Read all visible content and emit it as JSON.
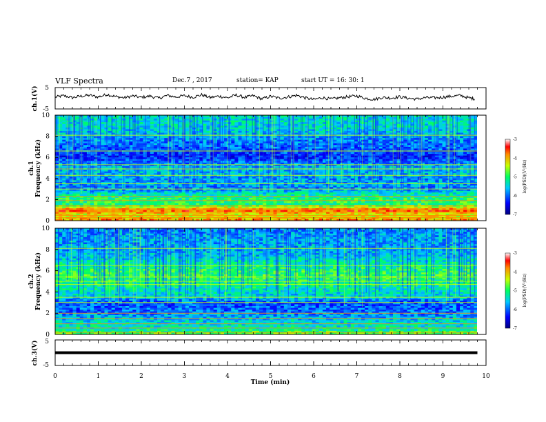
{
  "header": {
    "title": "VLF Spectra",
    "date": "Dec.7 , 2017",
    "station": "station= KAP",
    "start": "start UT =  16: 30: 1"
  },
  "chart_data": [
    {
      "type": "line",
      "ylabel": "ch.1(V)",
      "ylim": [
        -5,
        5
      ],
      "yticks": [
        "5",
        "-5"
      ],
      "xlim": [
        0,
        10
      ],
      "waveform_approx": [
        [
          0.0,
          0.5
        ],
        [
          0.2,
          1.2
        ],
        [
          0.4,
          0.3
        ],
        [
          0.6,
          1.0
        ],
        [
          0.8,
          1.4
        ],
        [
          1.0,
          0.6
        ],
        [
          1.2,
          1.8
        ],
        [
          1.4,
          0.8
        ],
        [
          1.6,
          0.2
        ],
        [
          1.8,
          1.1
        ],
        [
          2.0,
          0.4
        ],
        [
          2.2,
          1.0
        ],
        [
          2.4,
          0.0
        ],
        [
          2.6,
          1.3
        ],
        [
          2.8,
          0.6
        ],
        [
          3.0,
          1.2
        ],
        [
          3.2,
          0.5
        ],
        [
          3.4,
          1.6
        ],
        [
          3.6,
          0.3
        ],
        [
          3.8,
          1.0
        ],
        [
          4.0,
          0.2
        ],
        [
          4.2,
          1.5
        ],
        [
          4.4,
          0.4
        ],
        [
          4.6,
          1.2
        ],
        [
          4.8,
          -0.3
        ],
        [
          5.0,
          0.9
        ],
        [
          5.2,
          0.0
        ],
        [
          5.4,
          0.6
        ],
        [
          5.6,
          1.4
        ],
        [
          5.8,
          0.2
        ],
        [
          6.0,
          -0.6
        ],
        [
          6.2,
          0.3
        ],
        [
          6.4,
          -0.4
        ],
        [
          6.6,
          0.2
        ],
        [
          6.8,
          0.7
        ],
        [
          7.0,
          1.1
        ],
        [
          7.2,
          0.0
        ],
        [
          7.4,
          -0.5
        ],
        [
          7.6,
          0.4
        ],
        [
          7.8,
          0.1
        ],
        [
          8.0,
          0.7
        ],
        [
          8.2,
          0.0
        ],
        [
          8.4,
          -0.4
        ],
        [
          8.6,
          0.3
        ],
        [
          8.8,
          0.2
        ],
        [
          9.0,
          0.5
        ],
        [
          9.2,
          0.9
        ],
        [
          9.4,
          1.3
        ],
        [
          9.6,
          0.2
        ],
        [
          9.75,
          -0.3
        ]
      ]
    },
    {
      "type": "heatmap",
      "ylabel": "ch.1\nFrequency (kHz)",
      "ylabel_line1": "ch.1",
      "ylabel_line2": "Frequency (kHz)",
      "ylim": [
        0,
        10
      ],
      "yticks": [
        "0",
        "2",
        "4",
        "6",
        "8",
        "10"
      ],
      "xlim": [
        0,
        10
      ],
      "colorbar": {
        "label": "log(PSD)(V²/Hz)",
        "range": [
          -7,
          -3
        ],
        "ticks": [
          "-3",
          "-4",
          "-5",
          "-6",
          "-7"
        ]
      },
      "tone_lines_khz": [
        0.3,
        0.5,
        0.8,
        1.1,
        1.4,
        1.9,
        2.3,
        3.0,
        3.5,
        4.3,
        4.9,
        5.3,
        6.6,
        8.1
      ],
      "profile_db": [
        [
          0.0,
          -3.8
        ],
        [
          0.5,
          -4.4
        ],
        [
          1.0,
          -3.6
        ],
        [
          1.5,
          -5.0
        ],
        [
          2.0,
          -5.0
        ],
        [
          2.5,
          -5.3
        ],
        [
          3.0,
          -5.9
        ],
        [
          3.5,
          -5.7
        ],
        [
          4.0,
          -5.8
        ],
        [
          4.5,
          -5.6
        ],
        [
          5.0,
          -5.6
        ],
        [
          5.5,
          -5.9
        ],
        [
          6.0,
          -6.3
        ],
        [
          6.5,
          -6.1
        ],
        [
          7.0,
          -6.0
        ],
        [
          7.5,
          -5.9
        ],
        [
          8.0,
          -5.7
        ],
        [
          8.5,
          -5.5
        ],
        [
          9.0,
          -5.4
        ],
        [
          9.5,
          -5.4
        ],
        [
          10.0,
          -5.4
        ]
      ]
    },
    {
      "type": "heatmap",
      "ylabel": "ch.2\nFrequency (kHz)",
      "ylabel_line1": "ch.2",
      "ylabel_line2": "Frequency (kHz)",
      "ylim": [
        0,
        10
      ],
      "yticks": [
        "0",
        "2",
        "4",
        "6",
        "8",
        "10"
      ],
      "xlim": [
        0,
        10
      ],
      "colorbar": {
        "label": "log(PSD)(V²/Hz)",
        "range": [
          -7,
          -3
        ],
        "ticks": [
          "-3",
          "-4",
          "-5",
          "-6",
          "-7"
        ]
      },
      "tone_lines_khz": [
        0.2,
        0.6,
        1.0,
        1.5,
        2.0,
        3.0,
        3.5,
        4.7,
        5.0,
        5.4,
        6.5,
        8.1
      ],
      "profile_db": [
        [
          0.0,
          -4.6
        ],
        [
          0.5,
          -5.3
        ],
        [
          1.0,
          -5.4
        ],
        [
          1.5,
          -5.6
        ],
        [
          2.0,
          -5.9
        ],
        [
          2.5,
          -6.0
        ],
        [
          3.0,
          -6.1
        ],
        [
          3.5,
          -5.5
        ],
        [
          4.0,
          -5.4
        ],
        [
          4.5,
          -5.2
        ],
        [
          5.0,
          -5.1
        ],
        [
          5.5,
          -4.9
        ],
        [
          6.0,
          -5.0
        ],
        [
          6.5,
          -5.2
        ],
        [
          7.0,
          -5.4
        ],
        [
          7.5,
          -5.6
        ],
        [
          8.0,
          -5.7
        ],
        [
          8.5,
          -5.7
        ],
        [
          9.0,
          -5.7
        ],
        [
          9.5,
          -5.8
        ],
        [
          10.0,
          -5.8
        ]
      ]
    },
    {
      "type": "line",
      "ylabel": "ch.3(V)",
      "ylim": [
        -5,
        5
      ],
      "yticks": [
        "5",
        "-5"
      ],
      "xlim": [
        0,
        10
      ],
      "xlabel": "Time (min)",
      "xticks": [
        "0",
        "1",
        "2",
        "3",
        "4",
        "5",
        "6",
        "7",
        "8",
        "9",
        "10"
      ],
      "constant_value": 0,
      "line_end": 9.8
    }
  ]
}
